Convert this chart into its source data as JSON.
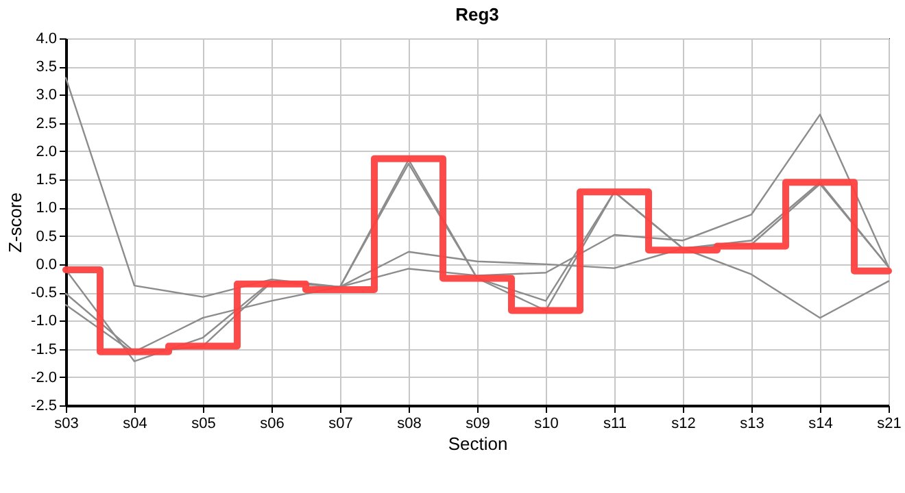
{
  "chart_data": {
    "type": "line",
    "title": "Reg3",
    "xlabel": "Section",
    "ylabel": "Z-score",
    "categories": [
      "s03",
      "s04",
      "s05",
      "s06",
      "s07",
      "s08",
      "s09",
      "s10",
      "s11",
      "s12",
      "s13",
      "s14",
      "s21"
    ],
    "series": [
      {
        "type": "line",
        "color": "#8c8c8c",
        "values": [
          3.3,
          -0.38,
          -0.58,
          -0.27,
          -0.4,
          0.22,
          0.05,
          0.0,
          -0.07,
          0.28,
          -0.18,
          -0.95,
          -0.3
        ]
      },
      {
        "type": "line",
        "color": "#8c8c8c",
        "values": [
          -0.52,
          -1.55,
          -0.95,
          -0.65,
          -0.4,
          -0.08,
          -0.2,
          -0.15,
          0.52,
          0.42,
          0.88,
          2.65,
          -0.05
        ]
      },
      {
        "type": "line",
        "color": "#8c8c8c",
        "values": [
          -0.1,
          -1.72,
          -1.3,
          -0.3,
          -0.4,
          1.85,
          -0.25,
          -0.65,
          1.28,
          0.28,
          0.42,
          1.45,
          -0.05
        ]
      },
      {
        "type": "line",
        "color": "#8c8c8c",
        "values": [
          -0.72,
          -1.58,
          -1.45,
          -0.32,
          -0.4,
          1.78,
          -0.25,
          -0.82,
          1.28,
          0.28,
          0.35,
          1.42,
          -0.05
        ]
      },
      {
        "type": "step",
        "color": "#ff4040",
        "values": [
          -0.1,
          -1.55,
          -1.45,
          -0.35,
          -0.45,
          1.87,
          -0.25,
          -0.82,
          1.28,
          0.25,
          0.32,
          1.45,
          -0.12
        ]
      }
    ],
    "ylim": [
      -2.5,
      4.0
    ],
    "yticks": [
      {
        "value": -2.5,
        "label": "-2.5"
      },
      {
        "value": -2,
        "label": "-2.0"
      },
      {
        "value": -1.5,
        "label": "-1.5"
      },
      {
        "value": -1,
        "label": "-1.0"
      },
      {
        "value": -0.5,
        "label": "-0.5"
      },
      {
        "value": 0,
        "label": "0.0"
      },
      {
        "value": 0.5,
        "label": "0.5"
      },
      {
        "value": 1,
        "label": "1.0"
      },
      {
        "value": 1.5,
        "label": "1.5"
      },
      {
        "value": 2,
        "label": "2.0"
      },
      {
        "value": 2.5,
        "label": "2.5"
      },
      {
        "value": 3,
        "label": "3.0"
      },
      {
        "value": 3.5,
        "label": "3.5"
      },
      {
        "value": 4,
        "label": "4.0"
      }
    ],
    "grid": true
  }
}
